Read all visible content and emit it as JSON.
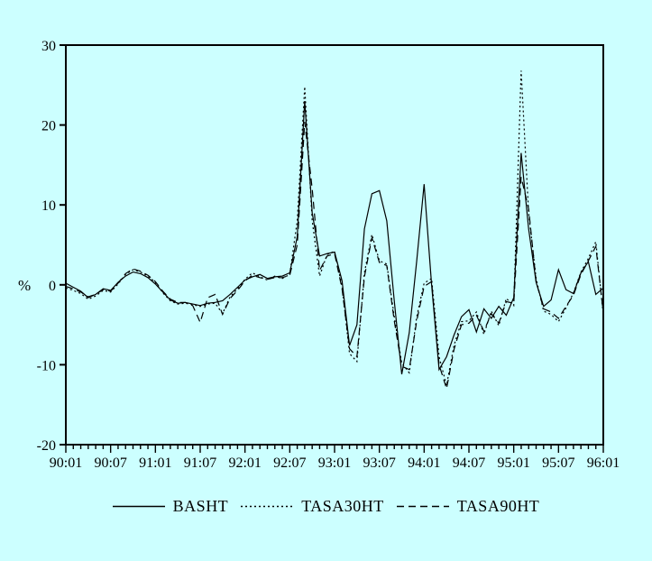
{
  "colors": {
    "background": "#ccffff",
    "foreground": "#000000"
  },
  "chart_data": {
    "type": "line",
    "title": "",
    "ylabel": "%",
    "xlabel": "",
    "ylim": [
      -20,
      30
    ],
    "yticks": [
      30,
      20,
      10,
      0,
      -10,
      -20
    ],
    "grid": false,
    "legend_position": "bottom",
    "x_months_total": 73,
    "xtick_every": 6,
    "xtick_labels": [
      "90:01",
      "90:07",
      "91:01",
      "91:07",
      "92:01",
      "92:07",
      "93:01",
      "93:07",
      "94:01",
      "94:07",
      "95:01",
      "95:07",
      "96:01"
    ],
    "x_start": "1990:01",
    "x_end": "1996:01",
    "series": [
      {
        "name": "BASHT",
        "style": "solid",
        "values": [
          0.2,
          -0.3,
          -0.8,
          -1.6,
          -1.2,
          -0.5,
          -0.7,
          0.3,
          1.1,
          1.6,
          1.4,
          0.9,
          0.1,
          -0.9,
          -1.9,
          -2.3,
          -2.2,
          -2.4,
          -2.6,
          -2.3,
          -2.2,
          -2.0,
          -1.2,
          -0.3,
          0.6,
          1.0,
          1.3,
          0.8,
          1.0,
          1.1,
          1.5,
          6.0,
          23.0,
          9.0,
          3.6,
          3.9,
          4.1,
          0.5,
          -7.6,
          -5.0,
          7.0,
          11.4,
          11.8,
          8.0,
          -2.0,
          -11.2,
          -6.0,
          3.0,
          12.6,
          0.0,
          -10.6,
          -9.0,
          -6.3,
          -4.0,
          -3.1,
          -5.9,
          -3.0,
          -4.2,
          -2.7,
          -3.8,
          -1.6,
          16.5,
          7.0,
          0.3,
          -2.7,
          -1.9,
          1.9,
          -0.6,
          -1.1,
          1.5,
          2.9,
          -1.2,
          -0.4
        ]
      },
      {
        "name": "TASA30HT",
        "style": "dotted",
        "values": [
          -0.4,
          -0.7,
          -1.1,
          -1.8,
          -1.4,
          -0.7,
          -0.9,
          0.1,
          1.3,
          1.9,
          1.6,
          1.1,
          0.3,
          -1.0,
          -2.0,
          -2.4,
          -2.3,
          -2.5,
          -2.7,
          -2.4,
          -2.3,
          -3.6,
          -1.5,
          -0.5,
          0.7,
          1.5,
          1.0,
          0.6,
          1.1,
          0.8,
          1.3,
          8.0,
          24.8,
          8.0,
          1.1,
          3.8,
          4.2,
          -0.2,
          -8.6,
          -9.6,
          1.5,
          6.3,
          3.0,
          2.6,
          -4.0,
          -9.8,
          -11.0,
          -4.0,
          0.2,
          0.8,
          -9.0,
          -12.6,
          -7.6,
          -4.6,
          -4.5,
          -3.4,
          -6.2,
          -3.3,
          -5.1,
          -1.7,
          -2.6,
          26.8,
          9.0,
          0.8,
          -3.3,
          -3.7,
          -4.6,
          -2.9,
          -1.0,
          1.6,
          3.3,
          5.4,
          -3.8
        ]
      },
      {
        "name": "TASA90HT",
        "style": "dashed",
        "values": [
          -0.2,
          -0.5,
          -0.9,
          -1.5,
          -1.2,
          -0.6,
          -0.8,
          0.2,
          1.4,
          2.0,
          1.7,
          1.2,
          0.4,
          -0.8,
          -1.8,
          -2.2,
          -2.2,
          -2.6,
          -4.7,
          -1.6,
          -1.2,
          -3.7,
          -1.7,
          -0.7,
          0.5,
          1.2,
          0.9,
          0.7,
          0.9,
          0.9,
          1.2,
          5.0,
          20.4,
          12.0,
          1.8,
          3.6,
          3.9,
          -0.5,
          -8.0,
          -9.0,
          1.0,
          5.9,
          2.8,
          2.4,
          -4.5,
          -10.2,
          -10.6,
          -4.5,
          -0.2,
          0.4,
          -10.0,
          -13.0,
          -8.1,
          -5.0,
          -4.8,
          -3.8,
          -5.8,
          -3.6,
          -4.8,
          -2.1,
          -2.3,
          13.5,
          9.5,
          0.4,
          -3.0,
          -3.4,
          -4.2,
          -2.7,
          -1.3,
          1.3,
          3.0,
          4.8,
          -3.5
        ]
      }
    ]
  },
  "legend": {
    "items": [
      {
        "label": "BASHT",
        "style": "solid"
      },
      {
        "label": "TASA30HT",
        "style": "dotted"
      },
      {
        "label": "TASA90HT",
        "style": "dashed"
      }
    ]
  }
}
